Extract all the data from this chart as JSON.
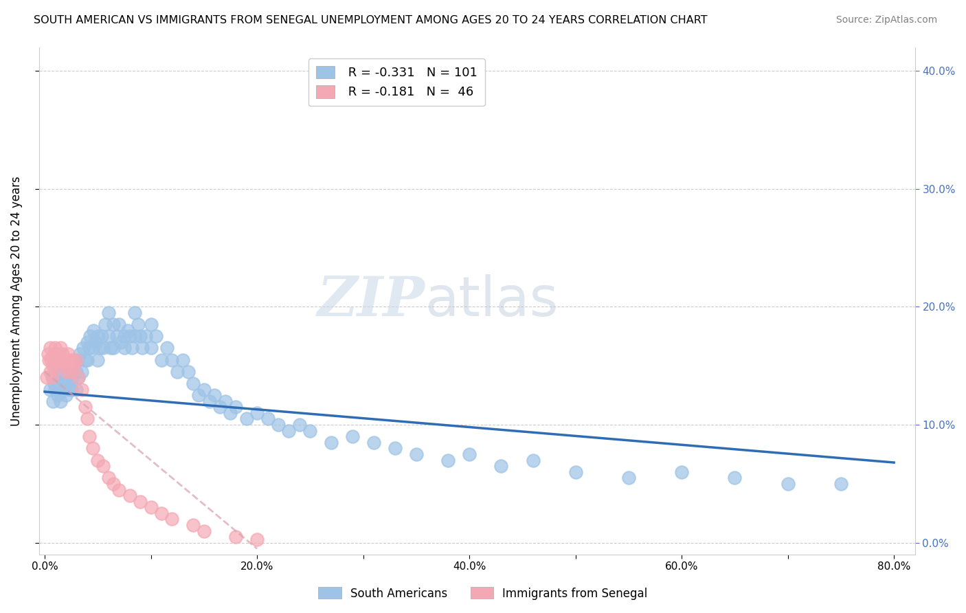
{
  "title": "SOUTH AMERICAN VS IMMIGRANTS FROM SENEGAL UNEMPLOYMENT AMONG AGES 20 TO 24 YEARS CORRELATION CHART",
  "source": "Source: ZipAtlas.com",
  "ylabel": "Unemployment Among Ages 20 to 24 years",
  "r_blue": "-0.331",
  "n_blue": "101",
  "r_pink": "-0.181",
  "n_pink": "46",
  "blue_color": "#9DC3E6",
  "pink_color": "#F4A8B4",
  "blue_line_color": "#2E6DB4",
  "pink_line_color": "#D9A0B0",
  "legend_label_blue": "South Americans",
  "legend_label_pink": "Immigrants from Senegal",
  "watermark_zip": "ZIP",
  "watermark_atlas": "atlas",
  "xlim": [
    -0.005,
    0.82
  ],
  "ylim": [
    -0.01,
    0.42
  ],
  "south_americans_x": [
    0.005,
    0.007,
    0.008,
    0.009,
    0.01,
    0.01,
    0.012,
    0.013,
    0.015,
    0.015,
    0.016,
    0.018,
    0.02,
    0.02,
    0.021,
    0.022,
    0.023,
    0.025,
    0.025,
    0.026,
    0.028,
    0.03,
    0.03,
    0.031,
    0.032,
    0.033,
    0.035,
    0.036,
    0.038,
    0.04,
    0.04,
    0.042,
    0.043,
    0.045,
    0.046,
    0.048,
    0.05,
    0.05,
    0.052,
    0.054,
    0.055,
    0.057,
    0.06,
    0.06,
    0.062,
    0.065,
    0.065,
    0.068,
    0.07,
    0.072,
    0.075,
    0.075,
    0.078,
    0.08,
    0.082,
    0.085,
    0.085,
    0.088,
    0.09,
    0.092,
    0.095,
    0.1,
    0.1,
    0.105,
    0.11,
    0.115,
    0.12,
    0.125,
    0.13,
    0.135,
    0.14,
    0.145,
    0.15,
    0.155,
    0.16,
    0.165,
    0.17,
    0.175,
    0.18,
    0.19,
    0.2,
    0.21,
    0.22,
    0.23,
    0.24,
    0.25,
    0.27,
    0.29,
    0.31,
    0.33,
    0.35,
    0.38,
    0.4,
    0.43,
    0.46,
    0.5,
    0.55,
    0.6,
    0.65,
    0.7,
    0.75
  ],
  "south_americans_y": [
    0.13,
    0.14,
    0.12,
    0.135,
    0.15,
    0.13,
    0.125,
    0.14,
    0.135,
    0.12,
    0.145,
    0.13,
    0.14,
    0.125,
    0.135,
    0.15,
    0.13,
    0.145,
    0.13,
    0.14,
    0.155,
    0.145,
    0.13,
    0.155,
    0.14,
    0.16,
    0.145,
    0.165,
    0.155,
    0.17,
    0.155,
    0.165,
    0.175,
    0.165,
    0.18,
    0.17,
    0.175,
    0.155,
    0.165,
    0.175,
    0.165,
    0.185,
    0.195,
    0.175,
    0.165,
    0.185,
    0.165,
    0.175,
    0.185,
    0.17,
    0.175,
    0.165,
    0.18,
    0.175,
    0.165,
    0.195,
    0.175,
    0.185,
    0.175,
    0.165,
    0.175,
    0.185,
    0.165,
    0.175,
    0.155,
    0.165,
    0.155,
    0.145,
    0.155,
    0.145,
    0.135,
    0.125,
    0.13,
    0.12,
    0.125,
    0.115,
    0.12,
    0.11,
    0.115,
    0.105,
    0.11,
    0.105,
    0.1,
    0.095,
    0.1,
    0.095,
    0.085,
    0.09,
    0.085,
    0.08,
    0.075,
    0.07,
    0.075,
    0.065,
    0.07,
    0.06,
    0.055,
    0.06,
    0.055,
    0.05,
    0.05
  ],
  "senegal_x": [
    0.002,
    0.003,
    0.004,
    0.005,
    0.005,
    0.006,
    0.007,
    0.008,
    0.009,
    0.01,
    0.01,
    0.012,
    0.013,
    0.014,
    0.015,
    0.016,
    0.017,
    0.018,
    0.02,
    0.021,
    0.022,
    0.023,
    0.025,
    0.026,
    0.028,
    0.03,
    0.032,
    0.035,
    0.038,
    0.04,
    0.042,
    0.045,
    0.05,
    0.055,
    0.06,
    0.065,
    0.07,
    0.08,
    0.09,
    0.1,
    0.11,
    0.12,
    0.14,
    0.15,
    0.18,
    0.2
  ],
  "senegal_y": [
    0.14,
    0.16,
    0.155,
    0.165,
    0.145,
    0.155,
    0.14,
    0.15,
    0.16,
    0.155,
    0.165,
    0.155,
    0.15,
    0.16,
    0.165,
    0.155,
    0.16,
    0.155,
    0.15,
    0.145,
    0.16,
    0.155,
    0.145,
    0.155,
    0.15,
    0.155,
    0.14,
    0.13,
    0.115,
    0.105,
    0.09,
    0.08,
    0.07,
    0.065,
    0.055,
    0.05,
    0.045,
    0.04,
    0.035,
    0.03,
    0.025,
    0.02,
    0.015,
    0.01,
    0.005,
    0.003
  ]
}
